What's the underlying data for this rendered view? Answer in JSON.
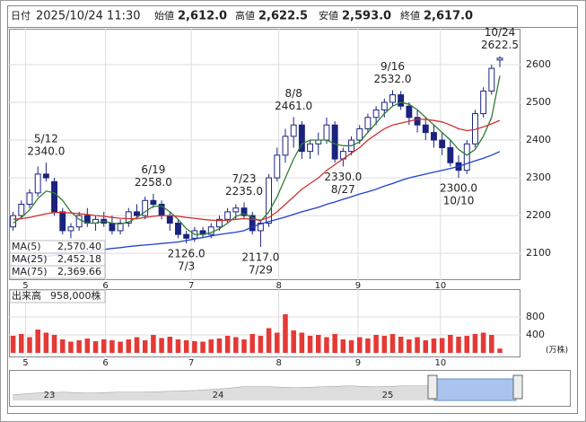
{
  "header": {
    "date_label": "日付",
    "date": "2025/10/24 11:30",
    "items": [
      {
        "name": "始値",
        "text": "2,612.0"
      },
      {
        "name": "高値",
        "text": "2,622.5"
      },
      {
        "name": "安値",
        "text": "2,593.0"
      },
      {
        "name": "終値",
        "text": "2,617.0"
      }
    ]
  },
  "chart_data": {
    "type": "candlestick",
    "xlim": [
      0,
      62
    ],
    "xticks": [
      {
        "value": 2,
        "label": "5"
      },
      {
        "value": 11.7,
        "label": "6"
      },
      {
        "value": 22.1,
        "label": "7"
      },
      {
        "value": 32.7,
        "label": "8"
      },
      {
        "value": 42.3,
        "label": "9"
      },
      {
        "value": 52.3,
        "label": "10"
      }
    ],
    "ylim": [
      2029,
      2695
    ],
    "yticks": [
      2100,
      2200,
      2300,
      2400,
      2500,
      2600
    ],
    "grid": true,
    "up_color": "#ffffff",
    "down_color": "#1a237e",
    "edge_color": "#1a237e",
    "ohlc": [
      [
        2170,
        2210,
        2160,
        2200
      ],
      [
        2200,
        2240,
        2190,
        2230
      ],
      [
        2230,
        2270,
        2220,
        2260
      ],
      [
        2260,
        2330,
        2250,
        2310
      ],
      [
        2310,
        2340,
        2290,
        2300
      ],
      [
        2290,
        2300,
        2200,
        2210
      ],
      [
        2210,
        2220,
        2150,
        2160
      ],
      [
        2160,
        2180,
        2140,
        2170
      ],
      [
        2170,
        2210,
        2160,
        2200
      ],
      [
        2200,
        2220,
        2170,
        2180
      ],
      [
        2180,
        2200,
        2160,
        2190
      ],
      [
        2190,
        2210,
        2170,
        2180
      ],
      [
        2180,
        2200,
        2150,
        2160
      ],
      [
        2160,
        2190,
        2150,
        2180
      ],
      [
        2180,
        2220,
        2170,
        2210
      ],
      [
        2210,
        2230,
        2190,
        2200
      ],
      [
        2200,
        2250,
        2190,
        2240
      ],
      [
        2240,
        2258,
        2220,
        2230
      ],
      [
        2230,
        2240,
        2190,
        2200
      ],
      [
        2200,
        2210,
        2160,
        2180
      ],
      [
        2180,
        2190,
        2140,
        2150
      ],
      [
        2150,
        2160,
        2126,
        2140
      ],
      [
        2140,
        2170,
        2130,
        2160
      ],
      [
        2160,
        2170,
        2140,
        2150
      ],
      [
        2150,
        2180,
        2140,
        2170
      ],
      [
        2170,
        2200,
        2160,
        2190
      ],
      [
        2190,
        2220,
        2180,
        2210
      ],
      [
        2210,
        2230,
        2190,
        2220
      ],
      [
        2220,
        2235,
        2190,
        2200
      ],
      [
        2200,
        2210,
        2150,
        2160
      ],
      [
        2160,
        2190,
        2117,
        2180
      ],
      [
        2180,
        2310,
        2170,
        2300
      ],
      [
        2300,
        2380,
        2290,
        2360
      ],
      [
        2360,
        2430,
        2340,
        2410
      ],
      [
        2410,
        2461,
        2380,
        2440
      ],
      [
        2440,
        2450,
        2350,
        2370
      ],
      [
        2370,
        2400,
        2350,
        2390
      ],
      [
        2390,
        2420,
        2360,
        2400
      ],
      [
        2400,
        2460,
        2390,
        2440
      ],
      [
        2440,
        2450,
        2340,
        2350
      ],
      [
        2350,
        2380,
        2330,
        2370
      ],
      [
        2370,
        2410,
        2360,
        2400
      ],
      [
        2400,
        2440,
        2390,
        2430
      ],
      [
        2430,
        2470,
        2420,
        2460
      ],
      [
        2460,
        2490,
        2440,
        2480
      ],
      [
        2480,
        2510,
        2460,
        2500
      ],
      [
        2500,
        2532,
        2490,
        2520
      ],
      [
        2520,
        2530,
        2480,
        2490
      ],
      [
        2490,
        2500,
        2440,
        2460
      ],
      [
        2460,
        2480,
        2420,
        2440
      ],
      [
        2440,
        2460,
        2400,
        2420
      ],
      [
        2420,
        2440,
        2380,
        2400
      ],
      [
        2400,
        2420,
        2360,
        2380
      ],
      [
        2380,
        2400,
        2330,
        2340
      ],
      [
        2340,
        2360,
        2300,
        2320
      ],
      [
        2320,
        2400,
        2310,
        2390
      ],
      [
        2390,
        2480,
        2380,
        2470
      ],
      [
        2470,
        2540,
        2460,
        2530
      ],
      [
        2530,
        2600,
        2520,
        2590
      ],
      [
        2612,
        2622.5,
        2593,
        2617
      ]
    ],
    "series": [
      {
        "name": "MA(5)",
        "color": "#2e7d32",
        "legend_label": "2,570.40",
        "values": [
          2180,
          2195,
          2215,
          2245,
          2265,
          2260,
          2240,
          2210,
          2190,
          2180,
          2180,
          2185,
          2180,
          2178,
          2183,
          2195,
          2210,
          2225,
          2225,
          2210,
          2190,
          2165,
          2150,
          2150,
          2155,
          2165,
          2180,
          2198,
          2205,
          2195,
          2185,
          2210,
          2250,
          2300,
          2350,
          2390,
          2400,
          2400,
          2400,
          2390,
          2385,
          2385,
          2395,
          2420,
          2445,
          2470,
          2490,
          2500,
          2495,
          2480,
          2460,
          2440,
          2420,
          2400,
          2375,
          2360,
          2375,
          2410,
          2460,
          2570.4
        ]
      },
      {
        "name": "MA(25)",
        "color": "#d32f2f",
        "legend_label": "2,452.18",
        "values": [
          2190,
          2192,
          2195,
          2200,
          2205,
          2208,
          2208,
          2207,
          2205,
          2203,
          2200,
          2198,
          2195,
          2193,
          2192,
          2192,
          2195,
          2198,
          2200,
          2200,
          2198,
          2195,
          2193,
          2190,
          2188,
          2187,
          2188,
          2190,
          2192,
          2190,
          2188,
          2195,
          2210,
          2230,
          2250,
          2270,
          2285,
          2300,
          2320,
          2335,
          2350,
          2365,
          2380,
          2400,
          2415,
          2430,
          2440,
          2445,
          2450,
          2455,
          2455,
          2452,
          2448,
          2440,
          2430,
          2425,
          2428,
          2435,
          2443,
          2452.18
        ]
      },
      {
        "name": "MA(75)",
        "color": "#1e3fcf",
        "legend_label": "2,369.66",
        "values": [
          2080,
          2083,
          2086,
          2089,
          2092,
          2095,
          2098,
          2100,
          2103,
          2105,
          2108,
          2110,
          2113,
          2115,
          2118,
          2120,
          2122,
          2124,
          2126,
          2128,
          2130,
          2134,
          2138,
          2142,
          2146,
          2150,
          2153,
          2156,
          2160,
          2170,
          2178,
          2184,
          2190,
          2196,
          2203,
          2210,
          2216,
          2222,
          2230,
          2236,
          2243,
          2250,
          2257,
          2263,
          2270,
          2278,
          2285,
          2293,
          2300,
          2305,
          2310,
          2315,
          2320,
          2325,
          2330,
          2338,
          2345,
          2352,
          2360,
          2369.66
        ]
      }
    ],
    "annotations": [
      {
        "date": "5/12",
        "value": 2340,
        "label": "2340.0"
      },
      {
        "date": "6/19",
        "value": 2258,
        "label": "2258.0"
      },
      {
        "date": "7/3",
        "value": 2126,
        "label": "2126.0"
      },
      {
        "date": "7/23",
        "value": 2235,
        "label": "2235.0"
      },
      {
        "date": "7/29",
        "value": 2117,
        "label": "2117.0"
      },
      {
        "date": "8/8",
        "value": 2461,
        "label": "2461.0"
      },
      {
        "date": "8/27",
        "value": 2330,
        "label": "2330.0"
      },
      {
        "date": "9/16",
        "value": 2532,
        "label": "2532.0"
      },
      {
        "date": "10/10",
        "value": 2300,
        "label": "2300.0"
      },
      {
        "date": "10/24",
        "value": 2622.5,
        "label": "2622.5"
      }
    ],
    "volume": {
      "title": "出来高",
      "label": "958,000株",
      "unit": "(万株)",
      "color": "#e53935",
      "ylim": [
        -100,
        1420
      ],
      "yticks": [
        400,
        800
      ],
      "values": [
        380,
        420,
        350,
        520,
        450,
        400,
        300,
        250,
        280,
        320,
        260,
        300,
        280,
        250,
        300,
        350,
        280,
        400,
        330,
        360,
        300,
        280,
        260,
        250,
        300,
        320,
        380,
        350,
        300,
        420,
        380,
        550,
        450,
        860,
        500,
        450,
        380,
        400,
        350,
        420,
        300,
        280,
        350,
        320,
        400,
        380,
        420,
        360,
        300,
        350,
        280,
        320,
        330,
        400,
        360,
        380,
        420,
        450,
        400,
        95.8
      ]
    },
    "navigator": {
      "labels": [
        "23",
        "24",
        "25"
      ]
    }
  }
}
